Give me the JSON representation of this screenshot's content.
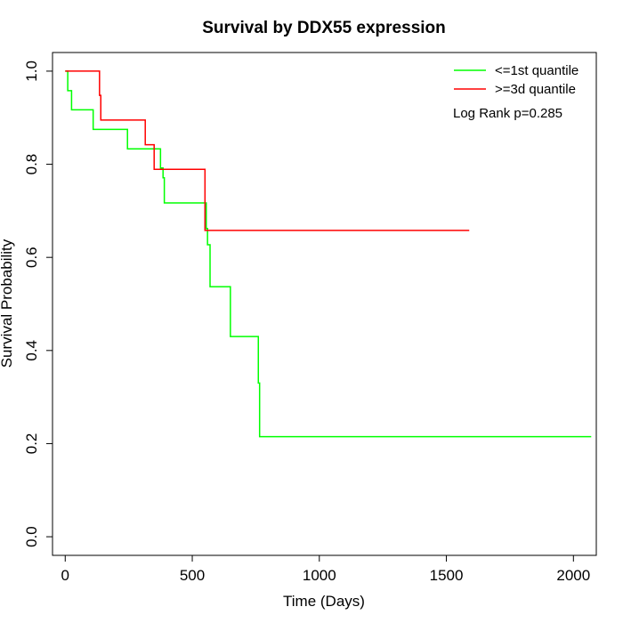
{
  "chart_data": {
    "type": "line",
    "subtype": "kaplan-meier step",
    "title": "Survival by DDX55 expression",
    "xlabel": "Time (Days)",
    "ylabel": "Survival Probability",
    "xlim": [
      -50,
      2090
    ],
    "ylim": [
      -0.04,
      1.04
    ],
    "xticks": [
      0,
      500,
      1000,
      1500,
      2000
    ],
    "yticks": [
      0.0,
      0.2,
      0.4,
      0.6,
      0.8,
      1.0
    ],
    "xtick_labels": [
      "0",
      "500",
      "1000",
      "1500",
      "2000"
    ],
    "ytick_labels": [
      "0.0",
      "0.2",
      "0.4",
      "0.6",
      "0.8",
      "1.0"
    ],
    "grid": false,
    "legend_position": "top-right",
    "annotation": "Log Rank p=0.285",
    "series": [
      {
        "name": "<=1st quantile",
        "color": "#00ff00",
        "steps": [
          [
            0,
            1.0
          ],
          [
            10,
            0.958
          ],
          [
            25,
            0.917
          ],
          [
            110,
            0.875
          ],
          [
            245,
            0.833
          ],
          [
            375,
            0.792
          ],
          [
            385,
            0.771
          ],
          [
            390,
            0.717
          ],
          [
            555,
            0.662
          ],
          [
            560,
            0.627
          ],
          [
            570,
            0.537
          ],
          [
            650,
            0.43
          ],
          [
            760,
            0.33
          ],
          [
            765,
            0.215
          ],
          [
            2070,
            0.215
          ]
        ]
      },
      {
        "name": ">=3d quantile",
        "color": "#ff0000",
        "steps": [
          [
            0,
            1.0
          ],
          [
            135,
            0.948
          ],
          [
            140,
            0.895
          ],
          [
            315,
            0.842
          ],
          [
            350,
            0.789
          ],
          [
            550,
            0.658
          ],
          [
            1590,
            0.658
          ]
        ]
      }
    ]
  }
}
